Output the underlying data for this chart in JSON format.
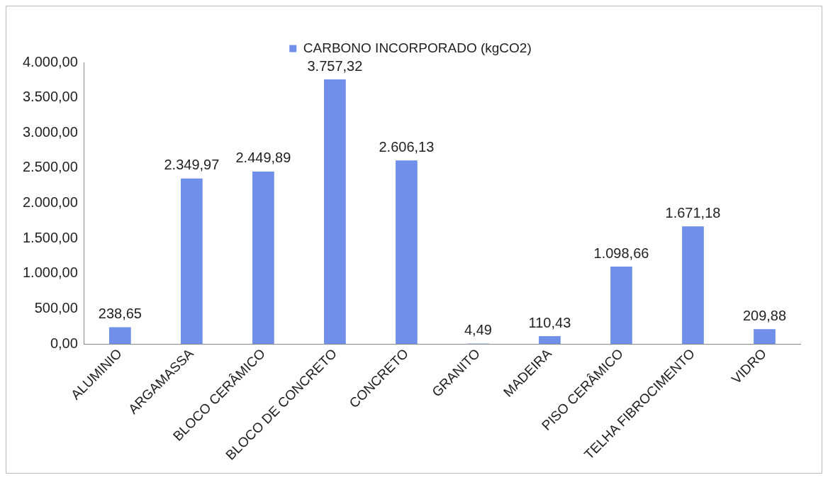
{
  "chart_data": {
    "type": "bar",
    "categories": [
      "ALUMINIO",
      "ARGAMASSA",
      "BLOCO CERÂMICO",
      "BLOCO DE CONCRETO",
      "CONCRETO",
      "GRANITO",
      "MADEIRA",
      "PISO CERÂMICO",
      "TELHA FIBROCIMENTO",
      "VIDRO"
    ],
    "series": [
      {
        "name": "CARBONO INCORPORADO (kgCO2)",
        "color": "#6f8fe8",
        "values": [
          238.65,
          2349.97,
          2449.89,
          3757.32,
          2606.13,
          4.49,
          110.43,
          1098.66,
          1671.18,
          209.88
        ],
        "value_labels": [
          "238,65",
          "2.349,97",
          "2.449,89",
          "3.757,32",
          "2.606,13",
          "4,49",
          "110,43",
          "1.098,66",
          "1.671,18",
          "209,88"
        ]
      }
    ],
    "ylim": [
      0,
      4000
    ],
    "yticks": [
      {
        "value": 0,
        "label": "0,00"
      },
      {
        "value": 500,
        "label": "500,00"
      },
      {
        "value": 1000,
        "label": "1.000,00"
      },
      {
        "value": 1500,
        "label": "1.500,00"
      },
      {
        "value": 2000,
        "label": "2.000,00"
      },
      {
        "value": 2500,
        "label": "2.500,00"
      },
      {
        "value": 3000,
        "label": "3.000,00"
      },
      {
        "value": 3500,
        "label": "3.500,00"
      },
      {
        "value": 4000,
        "label": "4.000,00"
      }
    ],
    "grid": false,
    "legend": "top"
  }
}
